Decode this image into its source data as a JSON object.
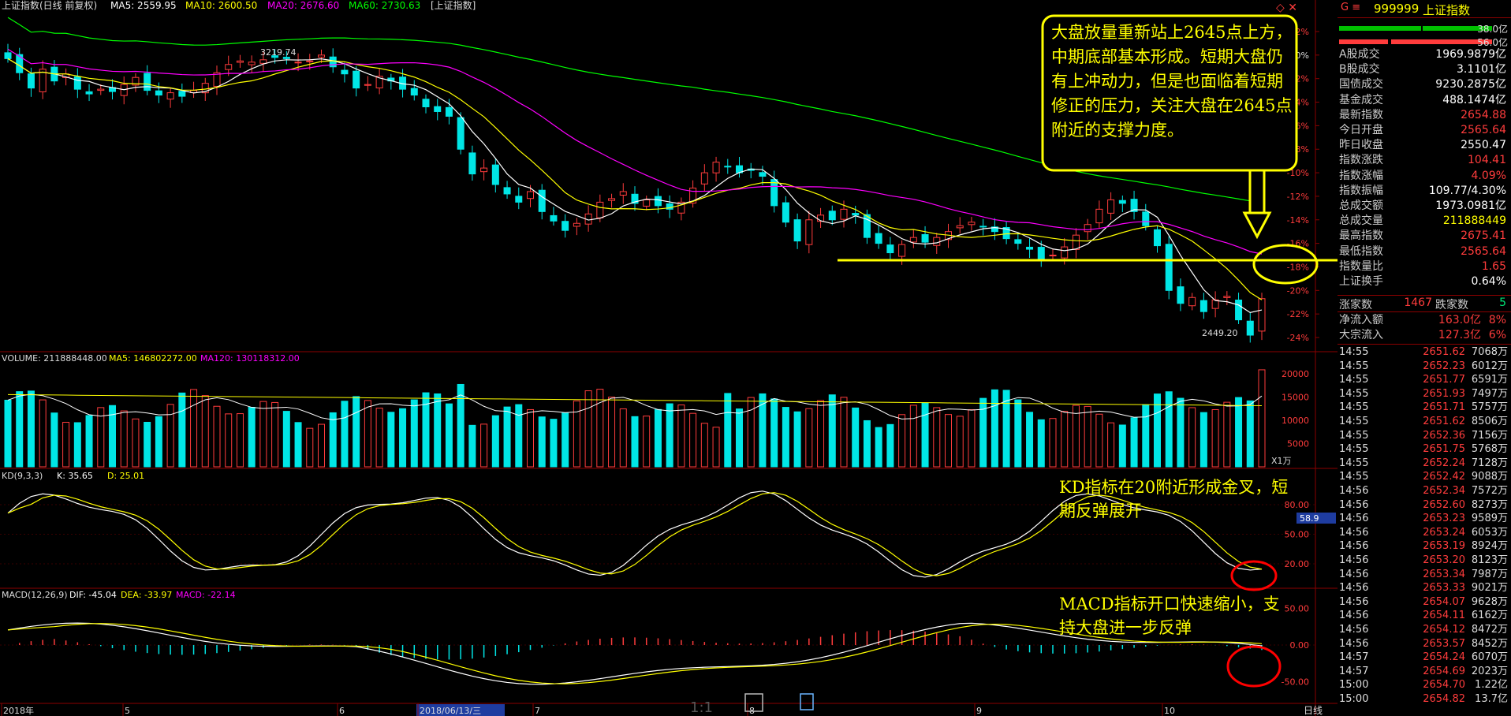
{
  "header": {
    "title": "上证指数(日线 前复权)",
    "ma5": "MA5: 2559.95",
    "ma10": "MA10: 2600.50",
    "ma20": "MA20: 2676.60",
    "ma60": "MA60: 2730.63",
    "tag": "[上证指数]"
  },
  "colors": {
    "up": "#ff3c3c",
    "down": "#00e6e6",
    "ma5": "#ffffff",
    "ma10": "#ffff00",
    "ma20": "#ff00ff",
    "ma60": "#00ff00",
    "grid": "#8b0000",
    "text": "#dddddd"
  },
  "pct_labels": [
    "2%",
    "0%",
    "-2%",
    "-4%",
    "-6%",
    "-8%",
    "-10%",
    "-12%",
    "-14%",
    "-16%",
    "-18%",
    "-20%",
    "-22%",
    "-24%"
  ],
  "price_high_label": "3219.74",
  "price_low_label": "2449.20",
  "volume_panel": {
    "title": "VOLUME: 211888448.00",
    "ma5": "MA5: 146802272.00",
    "ma120": "MA120: 130118312.00",
    "ticks": [
      "20000",
      "15000",
      "10000",
      "5000"
    ],
    "unit": "X1万"
  },
  "kd_panel": {
    "title": "KD(9,3,3)",
    "k": "K: 35.65",
    "d": "D: 25.01",
    "ticks": [
      "80.00",
      "50.00",
      "20.00"
    ],
    "current": "58.9"
  },
  "macd_panel": {
    "title": "MACD(12,26,9)",
    "dif": "DIF: -45.04",
    "dea": "DEA: -33.97",
    "macd": "MACD: -22.14",
    "ticks": [
      "50.00",
      "0.00",
      "-50.00"
    ]
  },
  "xaxis": [
    "2018年",
    "5",
    "6",
    "2018/06/13/三",
    "7",
    "8",
    "9",
    "10"
  ],
  "period": "日线",
  "toolbar": {
    "zoom": "1:1"
  },
  "annotations": {
    "main": "大盘放量重新站上2645点上方，中期底部基本形成。短期大盘仍有上冲动力，但是也面临着短期修正的压力，关注大盘在2645点附近的支撑力度。",
    "kd": "KD指标在20附近形成金叉，短期反弹展开",
    "macd": "MACD指标开口快速缩小，支持大盘进一步反弹"
  },
  "side_panel": {
    "code": "999999",
    "name": "上证指数",
    "up_ratio": "38.0亿",
    "down_ratio": "56.0亿",
    "stats": [
      {
        "label": "A股成交",
        "value": "1969.9879亿",
        "color": "#ffffff"
      },
      {
        "label": "B股成交",
        "value": "3.1101亿",
        "color": "#ffffff"
      },
      {
        "label": "国债成交",
        "value": "9230.2875亿",
        "color": "#ffffff"
      },
      {
        "label": "基金成交",
        "value": "488.1474亿",
        "color": "#ffffff"
      },
      {
        "label": "最新指数",
        "value": "2654.88",
        "color": "#ff3c3c"
      },
      {
        "label": "今日开盘",
        "value": "2565.64",
        "color": "#ff3c3c"
      },
      {
        "label": "昨日收盘",
        "value": "2550.47",
        "color": "#ffffff"
      },
      {
        "label": "指数涨跌",
        "value": "104.41",
        "color": "#ff3c3c"
      },
      {
        "label": "指数涨幅",
        "value": "4.09%",
        "color": "#ff3c3c"
      },
      {
        "label": "指数振幅",
        "value": "109.77/4.30%",
        "color": "#ffffff"
      },
      {
        "label": "总成交额",
        "value": "1973.0981亿",
        "color": "#ffffff"
      },
      {
        "label": "总成交量",
        "value": "211888449",
        "color": "#ffff00"
      },
      {
        "label": "最高指数",
        "value": "2675.41",
        "color": "#ff3c3c"
      },
      {
        "label": "最低指数",
        "value": "2565.64",
        "color": "#ff3c3c"
      },
      {
        "label": "指数量比",
        "value": "1.65",
        "color": "#ff3c3c"
      },
      {
        "label": "上证换手",
        "value": "0.64%",
        "color": "#ffffff"
      }
    ],
    "updown": {
      "up_label": "涨家数",
      "up_value": "1467",
      "down_label": "跌家数",
      "down_value": "5"
    },
    "flows": [
      {
        "label": "净流入额",
        "value": "163.0亿",
        "pct": "8%"
      },
      {
        "label": "大宗流入",
        "value": "127.3亿",
        "pct": "6%"
      }
    ],
    "ticks": [
      {
        "time": "14:55",
        "price": "2651.62",
        "vol": "7068万"
      },
      {
        "time": "14:55",
        "price": "2652.23",
        "vol": "6012万"
      },
      {
        "time": "14:55",
        "price": "2651.77",
        "vol": "6591万"
      },
      {
        "time": "14:55",
        "price": "2651.93",
        "vol": "7497万"
      },
      {
        "time": "14:55",
        "price": "2651.71",
        "vol": "5757万"
      },
      {
        "time": "14:55",
        "price": "2651.62",
        "vol": "8506万"
      },
      {
        "time": "14:55",
        "price": "2652.36",
        "vol": "7156万"
      },
      {
        "time": "14:55",
        "price": "2651.75",
        "vol": "5768万"
      },
      {
        "time": "14:55",
        "price": "2652.24",
        "vol": "7128万"
      },
      {
        "time": "14:55",
        "price": "2652.42",
        "vol": "9088万"
      },
      {
        "time": "14:56",
        "price": "2652.34",
        "vol": "7572万"
      },
      {
        "time": "14:56",
        "price": "2652.60",
        "vol": "8273万"
      },
      {
        "time": "14:56",
        "price": "2653.23",
        "vol": "9589万"
      },
      {
        "time": "14:56",
        "price": "2653.24",
        "vol": "6053万"
      },
      {
        "time": "14:56",
        "price": "2653.19",
        "vol": "8924万"
      },
      {
        "time": "14:56",
        "price": "2653.20",
        "vol": "8123万"
      },
      {
        "time": "14:56",
        "price": "2653.34",
        "vol": "7987万"
      },
      {
        "time": "14:56",
        "price": "2653.33",
        "vol": "9021万"
      },
      {
        "time": "14:56",
        "price": "2654.07",
        "vol": "9628万"
      },
      {
        "time": "14:56",
        "price": "2654.11",
        "vol": "6162万"
      },
      {
        "time": "14:56",
        "price": "2654.12",
        "vol": "8472万"
      },
      {
        "time": "14:56",
        "price": "2653.57",
        "vol": "8452万"
      },
      {
        "time": "14:57",
        "price": "2654.24",
        "vol": "6070万"
      },
      {
        "time": "14:57",
        "price": "2654.69",
        "vol": "2023万"
      },
      {
        "time": "15:00",
        "price": "2654.70",
        "vol": "1.22亿"
      },
      {
        "time": "15:00",
        "price": "2654.82",
        "vol": "13.7亿"
      }
    ]
  },
  "chart_data": [
    {
      "type": "candlestick",
      "title": "上证指数(日线 前复权)",
      "y_unit": "percent change vs last close",
      "ylim": [
        -24,
        2
      ],
      "x_start": "2018年",
      "x_months": [
        "5",
        "6",
        "7",
        "8",
        "9",
        "10"
      ],
      "annotations": [
        "3219.74",
        "2449.20"
      ],
      "closes_pct": [
        -0.3,
        -1.5,
        -2.8,
        -1.2,
        -2.2,
        -1.6,
        -2.9,
        -3.3,
        -2.9,
        -3.1,
        -2.5,
        -1.9,
        -3.0,
        -3.4,
        -3.2,
        -3.5,
        -3.0,
        -2.4,
        -1.5,
        -0.8,
        -0.5,
        -0.6,
        -0.4,
        -0.2,
        -0.3,
        -0.6,
        -0.5,
        0.0,
        -1.0,
        -1.6,
        -2.8,
        -2.5,
        -1.8,
        -2.2,
        -2.9,
        -3.4,
        -4.4,
        -4.8,
        -5.2,
        -8.0,
        -10.1,
        -9.6,
        -11.0,
        -11.8,
        -12.5,
        -11.6,
        -13.3,
        -14.1,
        -14.9,
        -14.3,
        -13.5,
        -12.5,
        -12.2,
        -11.6,
        -12.6,
        -12.3,
        -12.8,
        -13.1,
        -12.5,
        -11.3,
        -10.0,
        -9.1,
        -9.5,
        -10.0,
        -9.8,
        -10.3,
        -12.8,
        -14.2,
        -15.8,
        -14.0,
        -13.6,
        -14.0,
        -13.1,
        -13.6,
        -15.5,
        -16.0,
        -16.8,
        -16.1,
        -15.5,
        -15.9,
        -15.5,
        -15.0,
        -14.5,
        -14.2,
        -14.6,
        -15.0,
        -15.6,
        -16.0,
        -16.5,
        -17.3,
        -17.0,
        -16.3,
        -15.3,
        -14.4,
        -13.1,
        -12.3,
        -12.6,
        -13.3,
        -14.5,
        -16.2,
        -20.0,
        -21.1,
        -20.6,
        -21.8,
        -20.8,
        -20.5,
        -22.5,
        -23.8,
        -20.7
      ],
      "ma_lines": [
        {
          "name": "MA5",
          "value": 2559.95
        },
        {
          "name": "MA10",
          "value": 2600.5
        },
        {
          "name": "MA20",
          "value": 2676.6
        },
        {
          "name": "MA60",
          "value": 2730.63
        }
      ],
      "support_level_label": "2645"
    },
    {
      "type": "bar",
      "title": "VOLUME",
      "y_unit": "万",
      "ylim": [
        0,
        22000
      ],
      "last_value": 211888448.0
    },
    {
      "type": "line",
      "title": "KD(9,3,3)",
      "series": [
        {
          "name": "K",
          "last": 35.65
        },
        {
          "name": "D",
          "last": 25.01
        }
      ],
      "ylim": [
        0,
        100
      ]
    },
    {
      "type": "bar",
      "title": "MACD(12,26,9)",
      "series": [
        {
          "name": "DIF",
          "last": -45.04
        },
        {
          "name": "DEA",
          "last": -33.97
        },
        {
          "name": "MACD",
          "last": -22.14
        }
      ],
      "ylim": [
        -75,
        60
      ]
    }
  ]
}
